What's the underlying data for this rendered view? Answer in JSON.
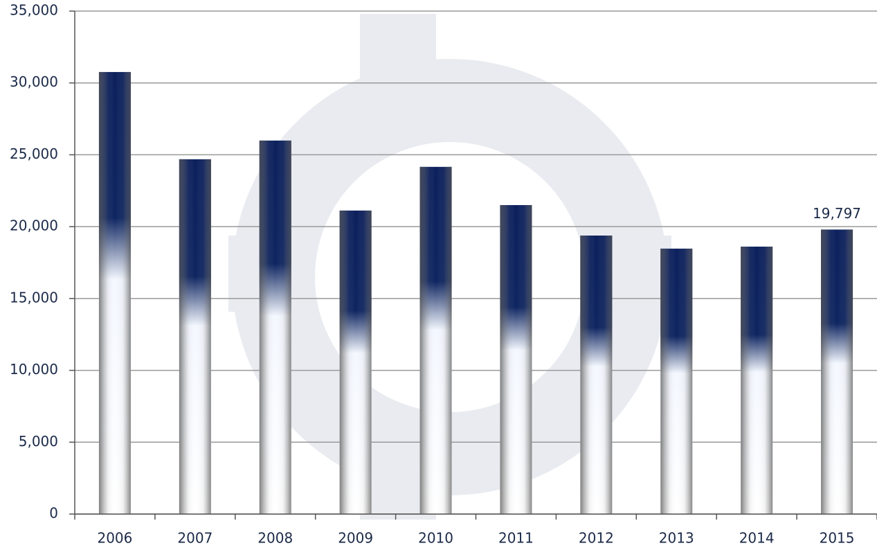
{
  "chart_data": {
    "type": "bar",
    "categories": [
      "2006",
      "2007",
      "2008",
      "2009",
      "2010",
      "2011",
      "2012",
      "2013",
      "2014",
      "2015"
    ],
    "values": [
      30760,
      24690,
      25990,
      21120,
      24160,
      21500,
      19380,
      18470,
      18610,
      19797
    ],
    "value_labels": [
      null,
      null,
      null,
      null,
      null,
      null,
      null,
      null,
      null,
      "19,797"
    ],
    "color": "#0b1f5c",
    "ylim": [
      0,
      35000
    ],
    "yticks": [
      0,
      {
        "value": 5000,
        "label": "5,000"
      },
      {
        "value": 10000,
        "label": "10,000"
      },
      {
        "value": 15000,
        "label": "15,000"
      },
      {
        "value": 20000,
        "label": "20,000"
      },
      {
        "value": 25000,
        "label": "25,000"
      },
      {
        "value": 30000,
        "label": "30,000"
      },
      {
        "value": 35000,
        "label": "35,000"
      }
    ],
    "grid": true
  }
}
